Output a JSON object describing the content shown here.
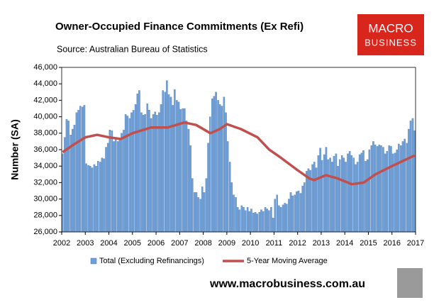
{
  "chart_data": {
    "type": "bar_line",
    "title": "Owner-Occupied Finance Commitments (Ex Refi)",
    "subtitle": "Source: Australian  Bureau of Statistics",
    "y_label": "Number (SA)",
    "logo": [
      "MACRO",
      "BUSINESS"
    ],
    "website": "www.macrobusiness.com.au",
    "xlim": [
      2002,
      2017
    ],
    "xticks": [
      2002,
      2003,
      2004,
      2005,
      2006,
      2007,
      2008,
      2009,
      2010,
      2011,
      2012,
      2013,
      2014,
      2015,
      2016,
      2017
    ],
    "ylim": [
      26000,
      46000
    ],
    "yticks": [
      {
        "value": 26000,
        "label": "26,000"
      },
      {
        "value": 28000,
        "label": "28,000"
      },
      {
        "value": 30000,
        "label": "30,000"
      },
      {
        "value": 32000,
        "label": "32,000"
      },
      {
        "value": 34000,
        "label": "34,000"
      },
      {
        "value": 36000,
        "label": "36,000"
      },
      {
        "value": 38000,
        "label": "38,000"
      },
      {
        "value": 40000,
        "label": "40,000"
      },
      {
        "value": 42000,
        "label": "42,000"
      },
      {
        "value": 44000,
        "label": "44,000"
      },
      {
        "value": 46000,
        "label": "46,000"
      }
    ],
    "grid": false,
    "legend": "bottom",
    "series": [
      {
        "name": "Total (Excluding Refinancings)",
        "kind": "bar",
        "color": "#6f9fd8",
        "x": [
          2002.04,
          2002.13,
          2002.21,
          2002.29,
          2002.38,
          2002.46,
          2002.54,
          2002.63,
          2002.71,
          2002.79,
          2002.88,
          2002.96,
          2003.04,
          2003.13,
          2003.21,
          2003.29,
          2003.38,
          2003.46,
          2003.54,
          2003.63,
          2003.71,
          2003.79,
          2003.88,
          2003.96,
          2004.04,
          2004.13,
          2004.21,
          2004.29,
          2004.38,
          2004.46,
          2004.54,
          2004.63,
          2004.71,
          2004.79,
          2004.88,
          2004.96,
          2005.04,
          2005.13,
          2005.21,
          2005.29,
          2005.38,
          2005.46,
          2005.54,
          2005.63,
          2005.71,
          2005.79,
          2005.88,
          2005.96,
          2006.04,
          2006.13,
          2006.21,
          2006.29,
          2006.38,
          2006.46,
          2006.54,
          2006.63,
          2006.71,
          2006.79,
          2006.88,
          2006.96,
          2007.04,
          2007.13,
          2007.21,
          2007.29,
          2007.38,
          2007.46,
          2007.54,
          2007.63,
          2007.71,
          2007.79,
          2007.88,
          2007.96,
          2008.04,
          2008.13,
          2008.21,
          2008.29,
          2008.38,
          2008.46,
          2008.54,
          2008.63,
          2008.71,
          2008.79,
          2008.88,
          2008.96,
          2009.04,
          2009.13,
          2009.21,
          2009.29,
          2009.38,
          2009.46,
          2009.54,
          2009.63,
          2009.71,
          2009.79,
          2009.88,
          2009.96,
          2010.04,
          2010.13,
          2010.21,
          2010.29,
          2010.38,
          2010.46,
          2010.54,
          2010.63,
          2010.71,
          2010.79,
          2010.88,
          2010.96,
          2011.04,
          2011.13,
          2011.21,
          2011.29,
          2011.38,
          2011.46,
          2011.54,
          2011.63,
          2011.71,
          2011.79,
          2011.88,
          2011.96,
          2012.04,
          2012.13,
          2012.21,
          2012.29,
          2012.38,
          2012.46,
          2012.54,
          2012.63,
          2012.71,
          2012.79,
          2012.88,
          2012.96,
          2013.04,
          2013.13,
          2013.21,
          2013.29,
          2013.38,
          2013.46,
          2013.54,
          2013.63,
          2013.71,
          2013.79,
          2013.88,
          2013.96,
          2014.04,
          2014.13,
          2014.21,
          2014.29,
          2014.38,
          2014.46,
          2014.54,
          2014.63,
          2014.71,
          2014.79,
          2014.88,
          2014.96,
          2015.04,
          2015.13,
          2015.21,
          2015.29,
          2015.38,
          2015.46,
          2015.54,
          2015.63,
          2015.71,
          2015.79,
          2015.88,
          2015.96,
          2016.04,
          2016.13,
          2016.21,
          2016.29,
          2016.38,
          2016.46,
          2016.54,
          2016.63,
          2016.71,
          2016.79,
          2016.88,
          2016.96
        ],
        "values": [
          35500,
          37500,
          39700,
          39500,
          37800,
          38500,
          39000,
          40500,
          40800,
          41300,
          41200,
          41400,
          34300,
          34100,
          34000,
          33800,
          34200,
          34000,
          34600,
          34500,
          35000,
          34900,
          36300,
          36800,
          38400,
          38300,
          37000,
          37500,
          37000,
          37200,
          38000,
          38400,
          40300,
          40100,
          39800,
          40500,
          40800,
          41500,
          42800,
          43200,
          40500,
          40200,
          40300,
          41600,
          40800,
          39800,
          40300,
          40600,
          40200,
          40500,
          41500,
          43200,
          43000,
          44400,
          42700,
          42400,
          41400,
          43300,
          42000,
          41800,
          40900,
          41000,
          41000,
          39500,
          38500,
          36500,
          32500,
          30800,
          30800,
          30200,
          30000,
          31500,
          30800,
          32500,
          36800,
          40000,
          42200,
          42500,
          43000,
          42000,
          41500,
          41300,
          42400,
          40500,
          37000,
          34500,
          32000,
          30500,
          30200,
          29000,
          28700,
          29200,
          29000,
          28600,
          29000,
          28500,
          28800,
          28300,
          28400,
          28200,
          28400,
          28700,
          28500,
          29000,
          28800,
          28600,
          29000,
          27700,
          30000,
          30500,
          29200,
          29000,
          29300,
          29500,
          29400,
          30000,
          30800,
          30400,
          30500,
          30900,
          31000,
          30700,
          31600,
          32000,
          33400,
          33700,
          33500,
          34200,
          34500,
          33800,
          35300,
          36200,
          34700,
          35400,
          36300,
          34800,
          35000,
          34500,
          35200,
          35500,
          34000,
          34800,
          35300,
          35000,
          34500,
          35500,
          35800,
          35300,
          35000,
          34200,
          34500,
          35400,
          35600,
          35900,
          34600,
          34800,
          36000,
          36500,
          37000,
          36600,
          36400,
          36600,
          36500,
          36300,
          35500,
          35800,
          36500,
          36400,
          35500,
          35600,
          36000,
          36700,
          36500,
          37000,
          37300,
          36800,
          38500,
          39500,
          39800,
          38300
        ]
      },
      {
        "name": "5-Year Moving Average",
        "kind": "line",
        "color": "#c0504d",
        "x": [
          2002.04,
          2002.5,
          2003.0,
          2003.5,
          2004.0,
          2004.5,
          2005.0,
          2005.8,
          2006.5,
          2007.2,
          2007.7,
          2008.3,
          2008.7,
          2009.0,
          2009.6,
          2010.3,
          2010.8,
          2011.3,
          2012.0,
          2012.5,
          2012.7,
          2013.2,
          2013.7,
          2014.3,
          2014.8,
          2015.3,
          2016.0,
          2016.96
        ],
        "values": [
          35700,
          36600,
          37500,
          37800,
          37500,
          37300,
          38000,
          38700,
          38700,
          39300,
          39000,
          38000,
          38500,
          39100,
          38500,
          37500,
          36000,
          35000,
          33500,
          32500,
          32300,
          32900,
          32500,
          31800,
          32000,
          33000,
          34000,
          35300
        ]
      }
    ]
  }
}
